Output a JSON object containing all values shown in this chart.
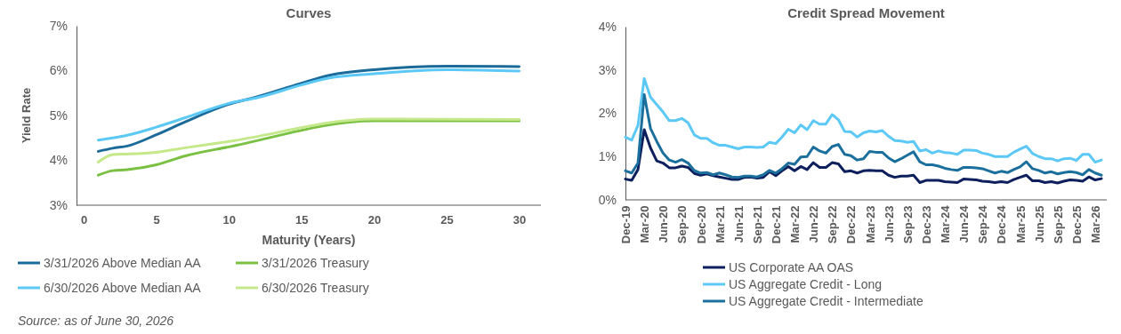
{
  "chart_data": [
    {
      "type": "line",
      "title": "Curves",
      "xlabel": "Maturity (Years)",
      "ylabel": "Yield Rate",
      "xlim": [
        -0.5,
        31.5
      ],
      "xticks": [
        0,
        5,
        10,
        15,
        20,
        25,
        30
      ],
      "ylim": [
        3,
        7
      ],
      "yticks": [
        {
          "value": 3,
          "label": "3%"
        },
        {
          "value": 4,
          "label": "4%"
        },
        {
          "value": 5,
          "label": "5%"
        },
        {
          "value": 6,
          "label": "6%"
        },
        {
          "value": 7,
          "label": "7%"
        }
      ],
      "grid": false,
      "legend": "bottom",
      "series": [
        {
          "name": "3/31/2026 Above Median AA",
          "color": "#1a6a9a",
          "x": [
            1,
            2,
            3,
            5,
            7,
            10,
            12,
            15,
            17,
            20,
            25,
            30
          ],
          "values": [
            4.2,
            4.27,
            4.32,
            4.57,
            4.86,
            5.25,
            5.42,
            5.72,
            5.9,
            6.02,
            6.1,
            6.09
          ]
        },
        {
          "name": "6/30/2026 Above Median AA",
          "color": "#5bc8f5",
          "x": [
            1,
            2,
            3,
            5,
            7,
            10,
            12,
            15,
            17,
            20,
            25,
            30
          ],
          "values": [
            4.45,
            4.5,
            4.56,
            4.74,
            4.95,
            5.27,
            5.4,
            5.68,
            5.84,
            5.93,
            6.02,
            5.99
          ]
        },
        {
          "name": "3/31/2026 Treasury",
          "color": "#7ac143",
          "x": [
            1,
            2,
            3,
            5,
            7,
            10,
            20,
            30
          ],
          "values": [
            3.67,
            3.77,
            3.79,
            3.9,
            4.1,
            4.3,
            4.88,
            4.88
          ]
        },
        {
          "name": "6/30/2026 Treasury",
          "color": "#c5e88a",
          "x": [
            1,
            2,
            3,
            5,
            7,
            10,
            20,
            30
          ],
          "values": [
            3.96,
            4.13,
            4.14,
            4.18,
            4.28,
            4.42,
            4.92,
            4.91
          ]
        }
      ],
      "annotations": [
        "Source: as of June 30, 2026"
      ]
    },
    {
      "type": "line",
      "title": "Credit Spread Movement",
      "categories": [
        "Dec-19",
        null,
        null,
        "Mar-20",
        null,
        null,
        "Jun-20",
        null,
        null,
        "Sep-20",
        null,
        null,
        "Dec-20",
        null,
        null,
        "Mar-21",
        null,
        null,
        "Jun-21",
        null,
        null,
        "Sep-21",
        null,
        null,
        "Dec-21",
        null,
        null,
        "Mar-22",
        null,
        null,
        "Jun-22",
        null,
        null,
        "Sep-22",
        null,
        null,
        "Dec-22",
        null,
        null,
        "Mar-23",
        null,
        null,
        "Jun-23",
        null,
        null,
        "Sep-23",
        null,
        null,
        "Dec-23",
        null,
        null,
        "Mar-24",
        null,
        null,
        "Jun-24",
        null,
        null,
        "Sep-24",
        null,
        null,
        "Dec-24",
        null,
        null,
        "Mar-25",
        null,
        null,
        "Jun-25",
        null,
        null,
        "Sep-25",
        null,
        null,
        "Dec-25",
        null,
        null,
        "Mar-26",
        null
      ],
      "ylim": [
        0,
        4
      ],
      "yticks": [
        {
          "value": 0,
          "label": "0%"
        },
        {
          "value": 1,
          "label": "1%"
        },
        {
          "value": 2,
          "label": "2%"
        },
        {
          "value": 3,
          "label": "3%"
        },
        {
          "value": 4,
          "label": "4%"
        }
      ],
      "grid": false,
      "legend": "bottom",
      "series": [
        {
          "name": "US Corporate AA OAS",
          "color": "#0d1f5c",
          "values": [
            0.48,
            0.45,
            0.7,
            1.62,
            1.2,
            0.9,
            0.85,
            0.74,
            0.74,
            0.78,
            0.75,
            0.61,
            0.57,
            0.6,
            0.56,
            0.53,
            0.5,
            0.47,
            0.47,
            0.52,
            0.53,
            0.5,
            0.52,
            0.65,
            0.56,
            0.67,
            0.77,
            0.67,
            0.77,
            0.7,
            0.86,
            0.75,
            0.75,
            0.86,
            0.83,
            0.65,
            0.67,
            0.62,
            0.67,
            0.68,
            0.67,
            0.67,
            0.57,
            0.52,
            0.55,
            0.55,
            0.57,
            0.4,
            0.45,
            0.45,
            0.45,
            0.42,
            0.41,
            0.4,
            0.48,
            0.47,
            0.46,
            0.43,
            0.42,
            0.4,
            0.42,
            0.4,
            0.47,
            0.52,
            0.57,
            0.44,
            0.44,
            0.4,
            0.42,
            0.39,
            0.43,
            0.46,
            0.45,
            0.43,
            0.53,
            0.46,
            0.49
          ]
        },
        {
          "name": "US Aggregate Credit - Long",
          "color": "#5bc8f5",
          "values": [
            1.45,
            1.38,
            1.72,
            2.8,
            2.37,
            2.2,
            2.03,
            1.83,
            1.83,
            1.88,
            1.78,
            1.5,
            1.42,
            1.42,
            1.32,
            1.26,
            1.26,
            1.22,
            1.18,
            1.22,
            1.22,
            1.21,
            1.22,
            1.33,
            1.3,
            1.45,
            1.63,
            1.55,
            1.73,
            1.62,
            1.83,
            1.75,
            1.75,
            1.97,
            1.85,
            1.58,
            1.57,
            1.45,
            1.55,
            1.59,
            1.57,
            1.6,
            1.47,
            1.37,
            1.36,
            1.33,
            1.35,
            1.13,
            1.16,
            1.08,
            1.13,
            1.09,
            1.08,
            1.05,
            1.15,
            1.15,
            1.14,
            1.08,
            1.05,
            1.0,
            1.0,
            1.0,
            1.1,
            1.17,
            1.24,
            1.07,
            1.0,
            0.95,
            0.95,
            0.9,
            0.95,
            0.96,
            0.91,
            1.05,
            1.05,
            0.87,
            0.92
          ]
        },
        {
          "name": "US Aggregate Credit - Intermediate",
          "color": "#1b6f9c",
          "values": [
            0.67,
            0.62,
            0.85,
            2.43,
            1.65,
            1.35,
            1.08,
            0.92,
            0.87,
            0.93,
            0.85,
            0.68,
            0.62,
            0.63,
            0.58,
            0.62,
            0.58,
            0.53,
            0.52,
            0.55,
            0.55,
            0.53,
            0.58,
            0.68,
            0.62,
            0.72,
            0.85,
            0.82,
            0.99,
            1.0,
            1.22,
            1.13,
            1.08,
            1.23,
            1.28,
            1.05,
            1.02,
            0.92,
            0.95,
            1.12,
            1.1,
            1.1,
            0.97,
            0.88,
            0.95,
            1.03,
            1.11,
            0.88,
            0.81,
            0.81,
            0.78,
            0.73,
            0.7,
            0.68,
            0.75,
            0.75,
            0.74,
            0.72,
            0.67,
            0.62,
            0.66,
            0.63,
            0.7,
            0.76,
            0.88,
            0.72,
            0.68,
            0.62,
            0.65,
            0.6,
            0.63,
            0.65,
            0.63,
            0.58,
            0.7,
            0.62,
            0.57
          ]
        }
      ]
    }
  ]
}
